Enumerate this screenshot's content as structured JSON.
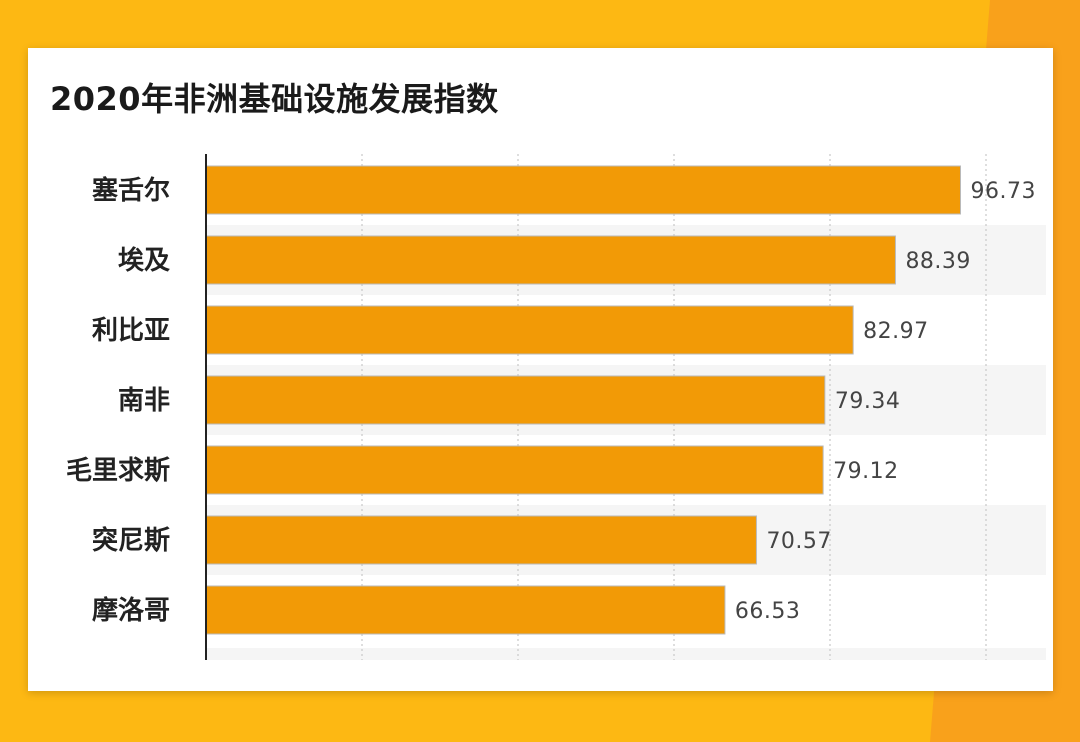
{
  "chart_data": {
    "type": "bar",
    "orientation": "horizontal",
    "title": "2020年非洲基础设施发展指数",
    "categories": [
      "塞舌尔",
      "埃及",
      "利比亚",
      "南非",
      "毛里求斯",
      "突尼斯",
      "摩洛哥"
    ],
    "values": [
      96.73,
      88.39,
      82.97,
      79.34,
      79.12,
      70.57,
      66.53
    ],
    "xlim": [
      0,
      100
    ],
    "grid": "vertical dotted",
    "bar_color": "#F29A06",
    "label_color": "#444444"
  }
}
